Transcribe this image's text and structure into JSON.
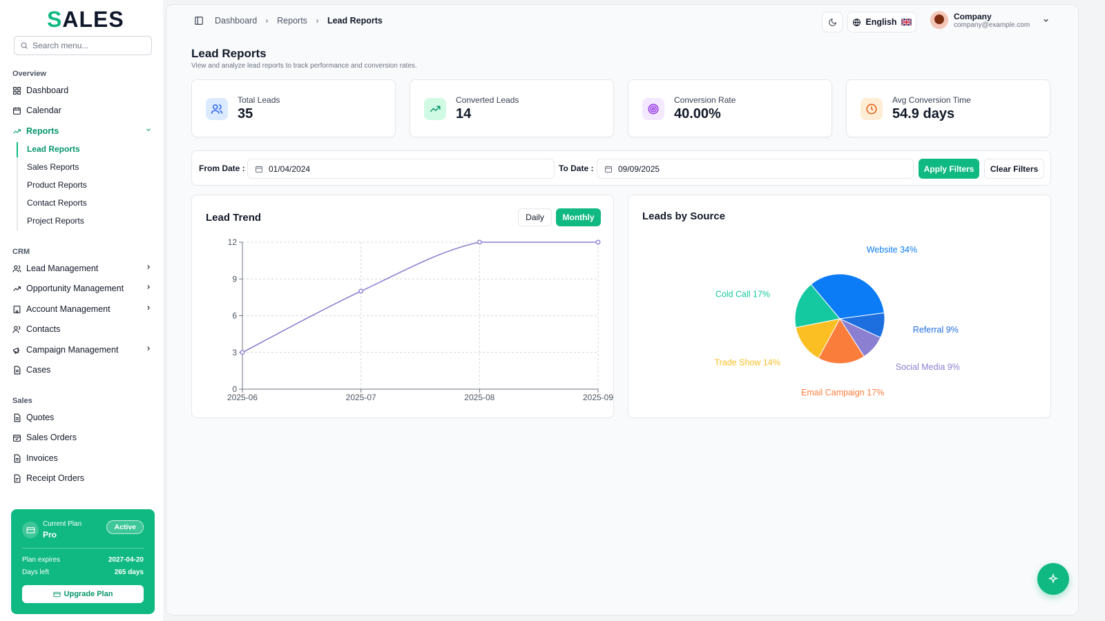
{
  "app": {
    "logo_accent": "S",
    "logo_rest": "ALES"
  },
  "sidebar": {
    "search_placeholder": "Search menu...",
    "sections": {
      "overview": "Overview",
      "crm": "CRM",
      "sales": "Sales"
    },
    "overview_items": [
      "Dashboard",
      "Calendar",
      "Reports"
    ],
    "report_subitems": [
      "Lead Reports",
      "Sales Reports",
      "Product Reports",
      "Contact Reports",
      "Project Reports"
    ],
    "crm_items": [
      "Lead Management",
      "Opportunity Management",
      "Account Management",
      "Contacts",
      "Campaign Management",
      "Cases"
    ],
    "sales_items": [
      "Quotes",
      "Sales Orders",
      "Invoices",
      "Receipt Orders"
    ]
  },
  "plan": {
    "label": "Current Plan",
    "name": "Pro",
    "status": "Active",
    "expires_label": "Plan expires",
    "expires_value": "2027-04-20",
    "days_label": "Days left",
    "days_value": "265 days",
    "upgrade_label": "Upgrade Plan"
  },
  "header": {
    "breadcrumb": [
      "Dashboard",
      "Reports",
      "Lead Reports"
    ],
    "language": "English",
    "user_name": "Company",
    "user_email": "company@example.com"
  },
  "page": {
    "title": "Lead Reports",
    "subtitle": "View and analyze lead reports to track performance and conversion rates."
  },
  "stats": [
    {
      "label": "Total Leads",
      "value": "35"
    },
    {
      "label": "Converted Leads",
      "value": "14"
    },
    {
      "label": "Conversion Rate",
      "value": "40.00%"
    },
    {
      "label": "Avg Conversion Time",
      "value": "54.9 days"
    }
  ],
  "filters": {
    "from_label": "From Date :",
    "from_value": "01/04/2024",
    "to_label": "To Date :",
    "to_value": "09/09/2025",
    "apply_label": "Apply Filters",
    "clear_label": "Clear Filters"
  },
  "trend": {
    "title": "Lead Trend",
    "daily_label": "Daily",
    "monthly_label": "Monthly"
  },
  "source": {
    "title": "Leads by Source"
  },
  "colors": {
    "accent": "#10b981",
    "line": "#8b7fd1"
  },
  "chart_data": [
    {
      "type": "line",
      "title": "Lead Trend",
      "x": [
        "2025-06",
        "2025-07",
        "2025-08",
        "2025-09"
      ],
      "values": [
        3,
        8,
        12,
        12
      ],
      "yticks": [
        0,
        3,
        6,
        9,
        12
      ],
      "ylim": [
        0,
        12
      ],
      "grid": true,
      "color": "#8b7fd1"
    },
    {
      "type": "pie",
      "title": "Leads by Source",
      "slices": [
        {
          "name": "Website",
          "value": 34,
          "label": "Website 34%",
          "color": "#0b7cf5"
        },
        {
          "name": "Referral",
          "value": 9,
          "label": "Referral 9%",
          "color": "#1d6fe0"
        },
        {
          "name": "Social Media",
          "value": 9,
          "label": "Social Media 9%",
          "color": "#8b7fd1"
        },
        {
          "name": "Email Campaign",
          "value": 17,
          "label": "Email Campaign 17%",
          "color": "#fb7d3c"
        },
        {
          "name": "Trade Show",
          "value": 14,
          "label": "Trade Show 14%",
          "color": "#fbbf24"
        },
        {
          "name": "Cold Call",
          "value": 17,
          "label": "Cold Call 17%",
          "color": "#14c8a0"
        }
      ]
    }
  ]
}
